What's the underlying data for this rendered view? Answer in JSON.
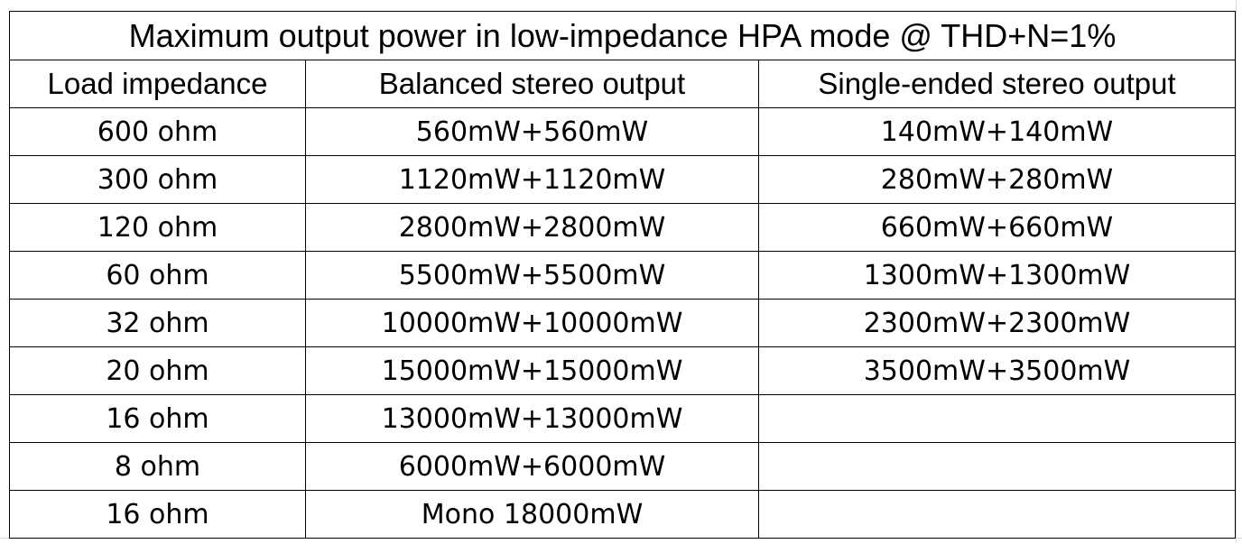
{
  "title": "Maximum output power in low-impedance HPA mode @ THD+N=1%",
  "headers": [
    "Load impedance",
    "Balanced stereo output",
    "Single-ended stereo output"
  ],
  "rows": [
    {
      "load": "600 ohm",
      "balanced": "560mW+560mW",
      "single_ended": "140mW+140mW"
    },
    {
      "load": "300 ohm",
      "balanced": "1120mW+1120mW",
      "single_ended": "280mW+280mW"
    },
    {
      "load": "120 ohm",
      "balanced": "2800mW+2800mW",
      "single_ended": "660mW+660mW"
    },
    {
      "load": "60 ohm",
      "balanced": "5500mW+5500mW",
      "single_ended": "1300mW+1300mW"
    },
    {
      "load": "32 ohm",
      "balanced": "10000mW+10000mW",
      "single_ended": "2300mW+2300mW"
    },
    {
      "load": "20 ohm",
      "balanced": "15000mW+15000mW",
      "single_ended": "3500mW+3500mW"
    },
    {
      "load": "16 ohm",
      "balanced": "13000mW+13000mW",
      "single_ended": ""
    },
    {
      "load": "8 ohm",
      "balanced": "6000mW+6000mW",
      "single_ended": ""
    },
    {
      "load": "16 ohm",
      "balanced": "Mono 18000mW",
      "single_ended": ""
    }
  ]
}
